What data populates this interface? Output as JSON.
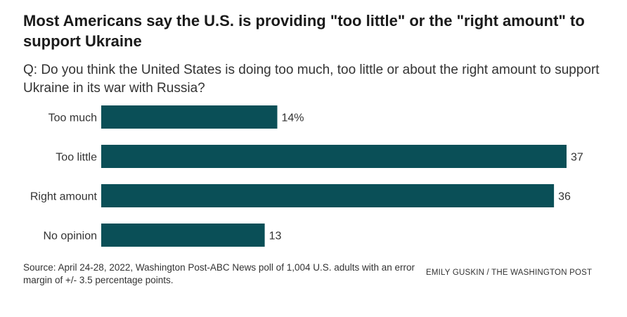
{
  "title": "Most Americans say the U.S. is providing \"too little\" or the \"right amount\" to support Ukraine",
  "subtitle": "Q: Do you think the United States is doing too much, too little or about the right amount to support Ukraine in its war with Russia?",
  "source": "Source: April 24-28, 2022, Washington Post-ABC News poll of 1,004 U.S. adults with an error margin of +/- 3.5 percentage points.",
  "credit": "EMILY GUSKIN / THE WASHINGTON POST",
  "chart_data": {
    "type": "bar",
    "orientation": "horizontal",
    "categories": [
      "Too much",
      "Too little",
      "Right amount",
      "No opinion"
    ],
    "values": [
      14,
      37,
      36,
      13
    ],
    "value_labels": [
      "14%",
      "37",
      "36",
      "13"
    ],
    "xlim": [
      0,
      37
    ],
    "grid": false,
    "legend": "none",
    "bar_color": "#0a4f57"
  }
}
